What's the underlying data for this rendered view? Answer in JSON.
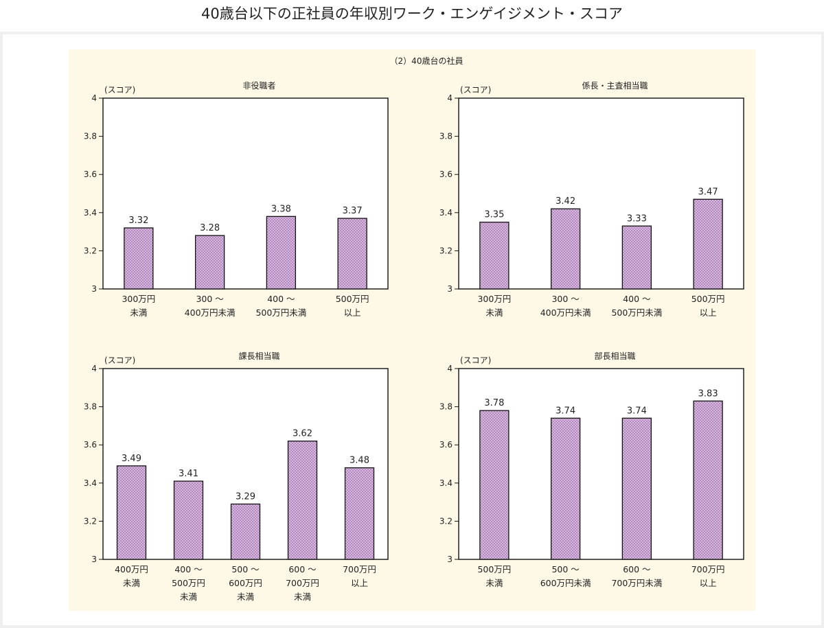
{
  "page": {
    "title": "40歳台以下の正社員の年収別ワーク・エンゲイジメント・スコア"
  },
  "figure": {
    "label": "（2）40歳台の社員"
  },
  "colors": {
    "bar_fill": "#ddbfe3",
    "bar_hatch": "#a77bb3",
    "bar_stroke": "#111111",
    "panel_background": "#fdf9e6"
  },
  "chart_data": [
    {
      "type": "bar",
      "title": "非役職者",
      "ylabel": "(スコア)",
      "ylim": [
        3,
        4
      ],
      "yticks": [
        "3",
        "3.2",
        "3.4",
        "3.6",
        "3.8",
        "4"
      ],
      "categories": [
        "300万円\n未満",
        "300 ～\n400万円未満",
        "400 ～\n500万円未満",
        "500万円\n以上"
      ],
      "values": [
        3.32,
        3.28,
        3.38,
        3.37
      ],
      "value_labels": [
        "3.32",
        "3.28",
        "3.38",
        "3.37"
      ],
      "grid": false
    },
    {
      "type": "bar",
      "title": "係長・主査相当職",
      "ylabel": "(スコア)",
      "ylim": [
        3,
        4
      ],
      "yticks": [
        "3",
        "3.2",
        "3.4",
        "3.6",
        "3.8",
        "4"
      ],
      "categories": [
        "300万円\n未満",
        "300 ～\n400万円未満",
        "400 ～\n500万円未満",
        "500万円\n以上"
      ],
      "values": [
        3.35,
        3.42,
        3.33,
        3.47
      ],
      "value_labels": [
        "3.35",
        "3.42",
        "3.33",
        "3.47"
      ],
      "grid": false
    },
    {
      "type": "bar",
      "title": "課長相当職",
      "ylabel": "(スコア)",
      "ylim": [
        3,
        4
      ],
      "yticks": [
        "3",
        "3.2",
        "3.4",
        "3.6",
        "3.8",
        "4"
      ],
      "categories": [
        "400万円\n未満",
        "400 ～\n500万円\n未満",
        "500 ～\n600万円\n未満",
        "600 ～\n700万円\n未満",
        "700万円\n以上"
      ],
      "values": [
        3.49,
        3.41,
        3.29,
        3.62,
        3.48
      ],
      "value_labels": [
        "3.49",
        "3.41",
        "3.29",
        "3.62",
        "3.48"
      ],
      "grid": false
    },
    {
      "type": "bar",
      "title": "部長相当職",
      "ylabel": "(スコア)",
      "ylim": [
        3,
        4
      ],
      "yticks": [
        "3",
        "3.2",
        "3.4",
        "3.6",
        "3.8",
        "4"
      ],
      "categories": [
        "500万円\n未満",
        "500 ～\n600万円未満",
        "600 ～\n700万円未満",
        "700万円\n以上"
      ],
      "values": [
        3.78,
        3.74,
        3.74,
        3.83
      ],
      "value_labels": [
        "3.78",
        "3.74",
        "3.74",
        "3.83"
      ],
      "grid": false
    }
  ]
}
